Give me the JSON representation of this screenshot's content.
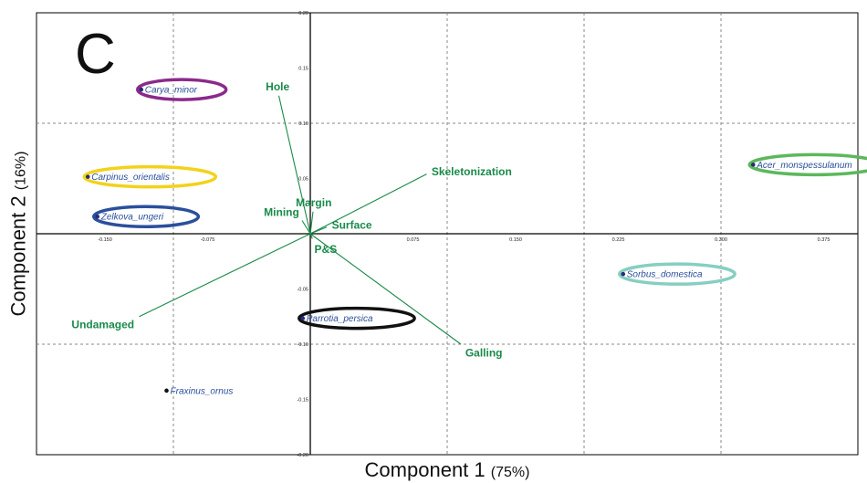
{
  "chart_data": {
    "type": "scatter",
    "subtype": "pca-biplot",
    "panel_label": "C",
    "xlabel": "Component 1",
    "xlabel_pct": "(75%)",
    "ylabel": "Component 2",
    "ylabel_pct": "(16%)",
    "xlim": [
      -0.2,
      0.4
    ],
    "ylim": [
      -0.2,
      0.2
    ],
    "grid": true,
    "x_ticks": [
      {
        "v": -0.15,
        "label": "-0.150"
      },
      {
        "v": -0.075,
        "label": "-0.075"
      },
      {
        "v": 0.075,
        "label": "0.075"
      },
      {
        "v": 0.15,
        "label": "0.150"
      },
      {
        "v": 0.225,
        "label": "0.225"
      },
      {
        "v": 0.3,
        "label": "0.300"
      },
      {
        "v": 0.375,
        "label": "0.375"
      }
    ],
    "y_ticks": [
      {
        "v": 0.2,
        "label": "0.20"
      },
      {
        "v": 0.15,
        "label": "0.15"
      },
      {
        "v": 0.1,
        "label": "0.10"
      },
      {
        "v": 0.05,
        "label": "0.05"
      },
      {
        "v": -0.05,
        "label": "-0.05"
      },
      {
        "v": -0.1,
        "label": "-0.10"
      },
      {
        "v": -0.15,
        "label": "-0.15"
      },
      {
        "v": -0.2,
        "label": "-0.20"
      }
    ],
    "gridlines_x": [
      -0.1,
      0.1,
      0.2,
      0.3
    ],
    "gridlines_y": [
      0.1,
      -0.1
    ],
    "points": [
      {
        "label": "Carya_minor",
        "x": -0.1235,
        "y": 0.1305,
        "ring": "#8b2a8a"
      },
      {
        "label": "Carpinus_orientalis",
        "x": -0.1625,
        "y": 0.0515,
        "ring": "#f2d21b"
      },
      {
        "label": "Zelkova_ungeri",
        "x": -0.1555,
        "y": 0.0155,
        "ring": "#2a4f9c"
      },
      {
        "label": "Parrotia_persica",
        "x": -0.0055,
        "y": -0.0765,
        "ring": "#111111"
      },
      {
        "label": "Fraxinus_ornus",
        "x": -0.105,
        "y": -0.142,
        "ring": null
      },
      {
        "label": "Acer_monspessulanum",
        "x": 0.3235,
        "y": 0.0625,
        "ring": "#5cb85c"
      },
      {
        "label": "Sorbus_domestica",
        "x": 0.2285,
        "y": -0.0365,
        "ring": "#86cfc0"
      }
    ],
    "vectors": [
      {
        "label": "Hole",
        "x": -0.023,
        "y": 0.125
      },
      {
        "label": "Skeletonization",
        "x": 0.085,
        "y": 0.054
      },
      {
        "label": "Margin",
        "x": 0.002,
        "y": 0.02
      },
      {
        "label": "Mining",
        "x": -0.006,
        "y": 0.012
      },
      {
        "label": "Surface",
        "x": 0.012,
        "y": 0.006
      },
      {
        "label": "P&S",
        "x": 0.0015,
        "y": -0.0045
      },
      {
        "label": "Undamaged",
        "x": -0.125,
        "y": -0.075
      },
      {
        "label": "Galling",
        "x": 0.11,
        "y": -0.1
      }
    ],
    "colors": {
      "vector": "#1a8a4a",
      "point_label": "#2a4f9c",
      "point": "#2a2a7a",
      "axis": "#000000",
      "grid": "#888888"
    }
  }
}
